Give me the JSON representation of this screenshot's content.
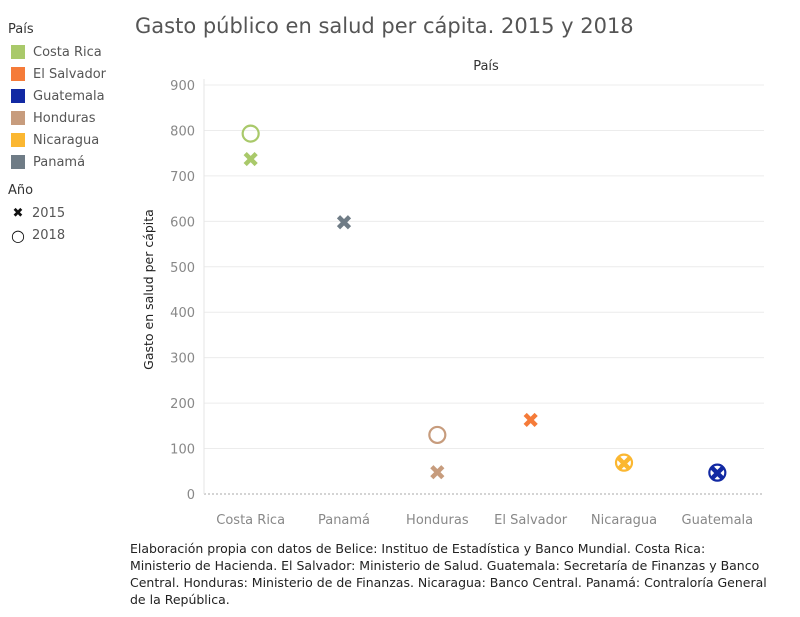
{
  "title": "Gasto público en salud per cápita. 2015 y 2018",
  "source": "Elaboración propia con datos de Belice: Instituo de Estadística y Banco Mundial. Costa Rica: Ministerio de Hacienda. El Salvador: Ministerio de Salud. Guatemala: Secretaría de Finanzas y Banco Central. Honduras: Ministerio de de Finanzas. Nicaragua: Banco Central. Panamá: Contraloría General de la República.",
  "legend": {
    "country_heading": "País",
    "countries": [
      {
        "label": "Costa Rica",
        "color": "#a9c96a"
      },
      {
        "label": "El Salvador",
        "color": "#f57b39"
      },
      {
        "label": "Guatemala",
        "color": "#1229a3"
      },
      {
        "label": "Honduras",
        "color": "#c79c7d"
      },
      {
        "label": "Nicaragua",
        "color": "#fbb731"
      },
      {
        "label": "Panamá",
        "color": "#6f7c86"
      }
    ],
    "year_heading": "Año",
    "years": [
      {
        "label": "2015",
        "marker": "cross-icon",
        "symbol": "✖"
      },
      {
        "label": "2018",
        "marker": "circle-icon",
        "symbol": "○"
      }
    ]
  },
  "chart_data": {
    "type": "scatter",
    "title": "Gasto público en salud per cápita. 2015 y 2018",
    "column_header": "País",
    "ylabel": "Gasto en salud per cápita",
    "xlabel": "",
    "categories": [
      "Costa Rica",
      "Panamá",
      "Honduras",
      "El Salvador",
      "Nicaragua",
      "Guatemala"
    ],
    "yticks": [
      0,
      100,
      200,
      300,
      400,
      500,
      600,
      700,
      800,
      900
    ],
    "ylim": [
      0,
      900
    ],
    "grid": true,
    "series": [
      {
        "name": "2015",
        "marker": "cross",
        "values": [
          737,
          598,
          48,
          163,
          67,
          46
        ]
      },
      {
        "name": "2018",
        "marker": "circle",
        "values": [
          793,
          null,
          130,
          null,
          69,
          47
        ]
      }
    ],
    "colors": {
      "Costa Rica": "#a9c96a",
      "Panamá": "#6f7c86",
      "Honduras": "#c79c7d",
      "El Salvador": "#f57b39",
      "Nicaragua": "#fbb731",
      "Guatemala": "#1229a3"
    }
  }
}
